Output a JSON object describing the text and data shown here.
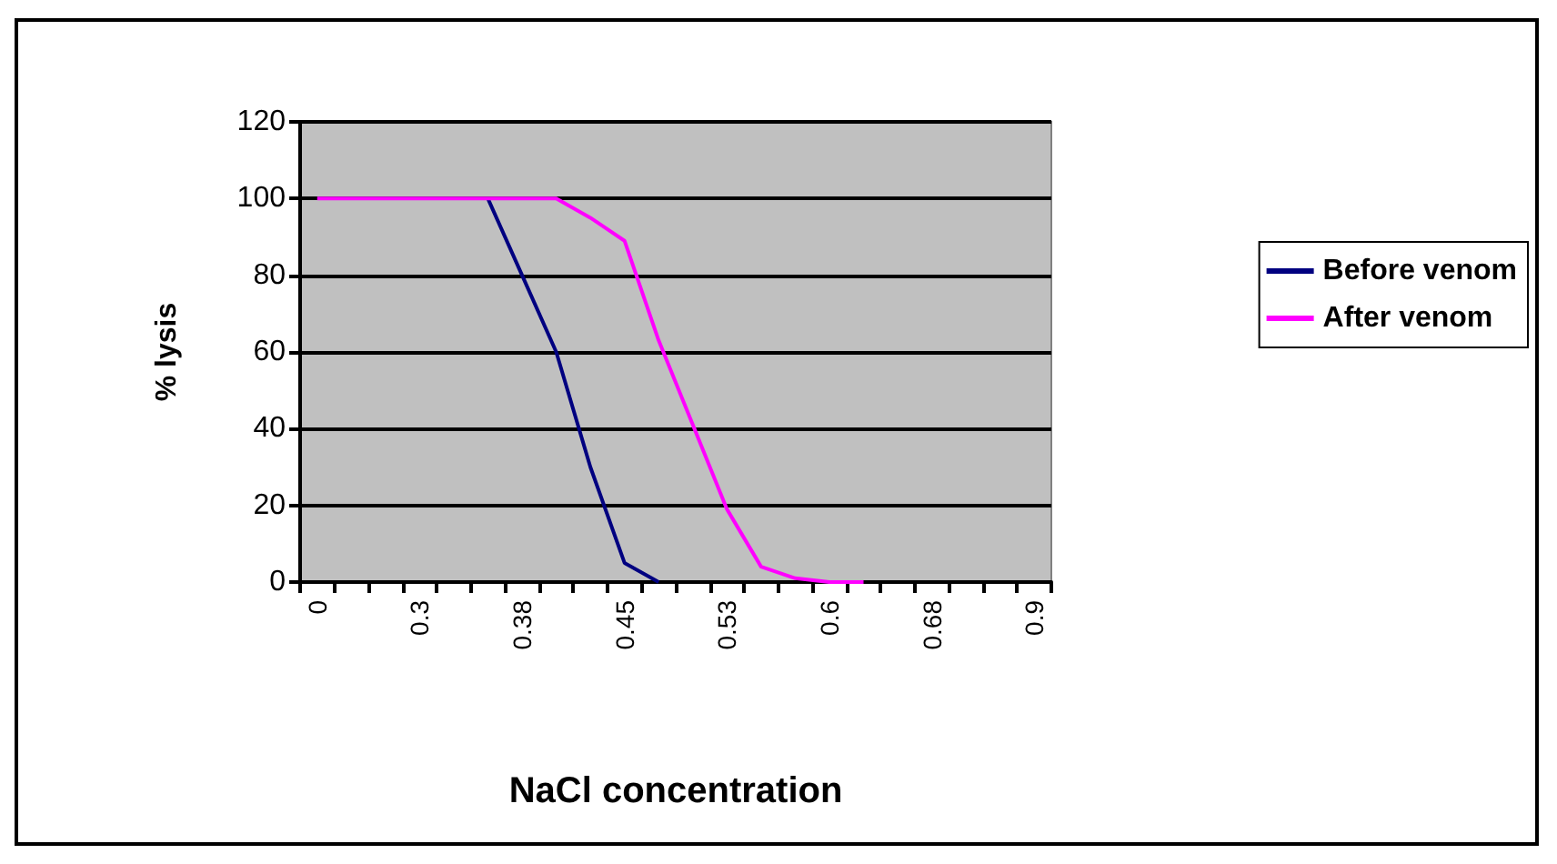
{
  "chart_data": {
    "type": "line",
    "xlabel": "NaCl concentration",
    "ylabel": "% lysis",
    "categories": [
      "0",
      null,
      null,
      "0.3",
      null,
      null,
      "0.38",
      null,
      null,
      "0.45",
      null,
      null,
      "0.53",
      null,
      null,
      "0.6",
      null,
      null,
      "0.68",
      null,
      null,
      "0.9"
    ],
    "series": [
      {
        "name": "Before venom",
        "color": "#000080",
        "values": [
          null,
          null,
          null,
          null,
          null,
          100,
          80,
          60,
          30,
          5,
          0,
          null,
          null,
          null,
          null,
          null,
          null,
          null,
          null,
          null,
          null,
          null
        ]
      },
      {
        "name": "After venom",
        "color": "#ff00ff",
        "values": [
          100,
          100,
          100,
          100,
          100,
          100,
          100,
          100,
          95,
          89,
          63,
          41,
          19,
          4,
          1,
          0,
          0,
          null,
          null,
          null,
          null,
          null
        ]
      }
    ],
    "ylim": [
      0,
      120
    ],
    "yticks": [
      0,
      20,
      40,
      60,
      80,
      100,
      120
    ],
    "grid": "y",
    "legend": "right",
    "marker": "none",
    "line_style": "solid"
  }
}
